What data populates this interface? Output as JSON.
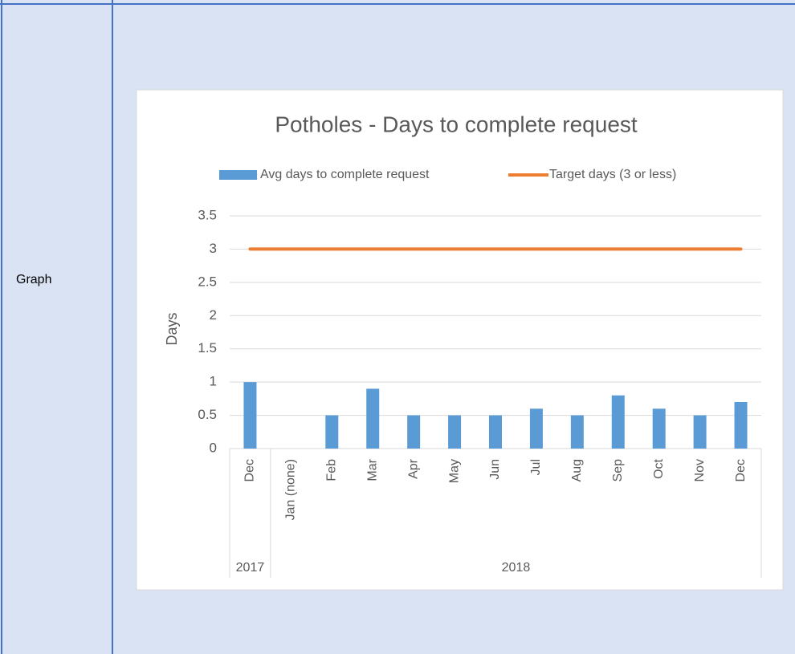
{
  "row_label": "Graph",
  "chart_data": {
    "type": "bar",
    "title": "Potholes - Days to complete request",
    "y_label": "Days",
    "categories": [
      "Dec",
      "Jan (none)",
      "Feb",
      "Mar",
      "Apr",
      "May",
      "Jun",
      "Jul",
      "Aug",
      "Sep",
      "Oct",
      "Nov",
      "Dec"
    ],
    "groups": [
      {
        "label": "2017",
        "count": 1
      },
      {
        "label": "2018",
        "count": 12
      }
    ],
    "series": [
      {
        "name": "Avg days to complete request",
        "type": "bar",
        "color": "#5b9bd5",
        "values": [
          1,
          null,
          0.5,
          0.9,
          0.5,
          0.5,
          0.5,
          0.6,
          0.5,
          0.8,
          0.6,
          0.5,
          0.7
        ]
      },
      {
        "name": "Target days (3 or less)",
        "type": "line",
        "color": "#ed7d31",
        "values": [
          3,
          3,
          3,
          3,
          3,
          3,
          3,
          3,
          3,
          3,
          3,
          3,
          3
        ]
      }
    ],
    "ylim": [
      0,
      3.5
    ],
    "yticks": [
      0,
      0.5,
      1,
      1.5,
      2,
      2.5,
      3,
      3.5
    ],
    "grid": true,
    "legend": "top"
  }
}
